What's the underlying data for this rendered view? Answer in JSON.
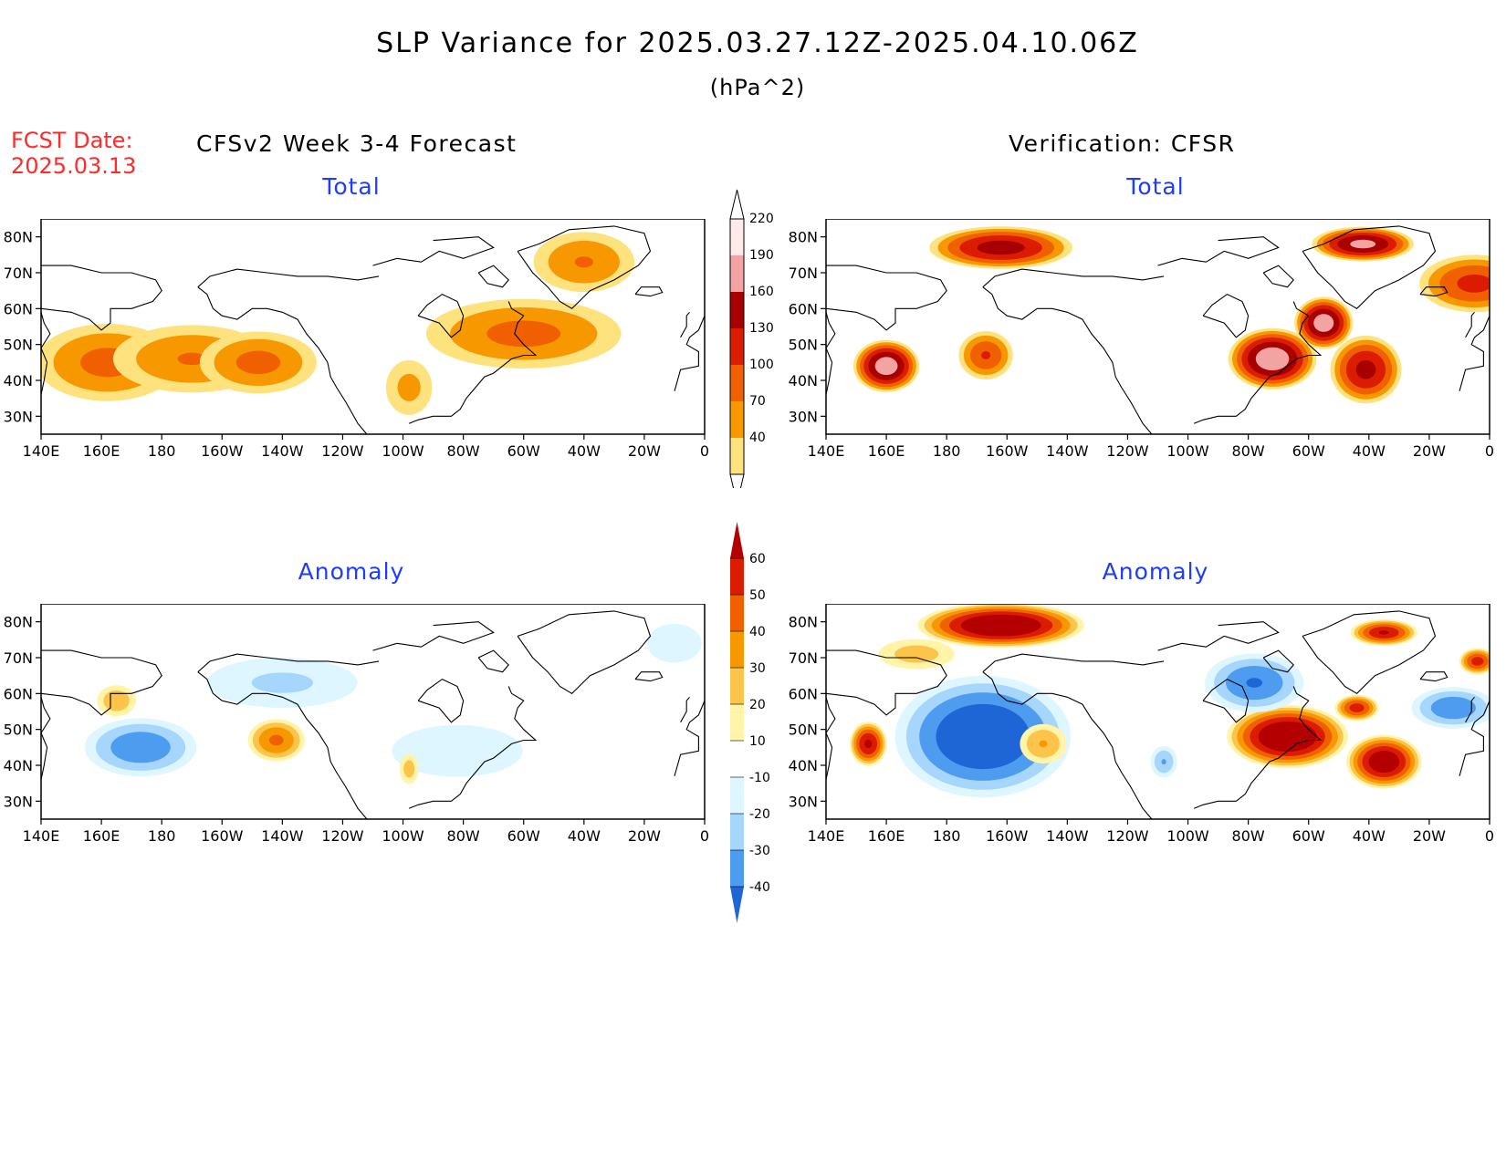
{
  "header": {
    "title": "SLP Variance for 2025.03.27.12Z-2025.04.10.06Z",
    "units": "(hPa^2)",
    "fcst_label": "FCST Date:",
    "fcst_date": "2025.03.13",
    "left_column": "CFSv2 Week 3-4 Forecast",
    "right_column": "Verification: CFSR"
  },
  "axes": {
    "lon_labels": [
      "140E",
      "160E",
      "180",
      "160W",
      "140W",
      "120W",
      "100W",
      "80W",
      "60W",
      "40W",
      "20W",
      "0"
    ],
    "lat_labels": [
      "80N",
      "70N",
      "60N",
      "50N",
      "40N",
      "30N"
    ]
  },
  "panels": [
    {
      "id": "forecast-total",
      "title": "Total",
      "field": "total",
      "source": "CFSv2 Week 3-4 Forecast"
    },
    {
      "id": "verification-total",
      "title": "Total",
      "field": "total",
      "source": "Verification: CFSR"
    },
    {
      "id": "forecast-anomaly",
      "title": "Anomaly",
      "field": "anomaly",
      "source": "CFSv2 Week 3-4 Forecast"
    },
    {
      "id": "verification-anomaly",
      "title": "Anomaly",
      "field": "anomaly",
      "source": "Verification: CFSR"
    }
  ],
  "colorbars": {
    "total": {
      "labels": [
        "220",
        "190",
        "160",
        "130",
        "100",
        "70",
        "40"
      ],
      "colors": [
        "#ffe9e9",
        "#f4a3a3",
        "#a80000",
        "#dc1c00",
        "#f06000",
        "#f89800",
        "#fde27e"
      ]
    },
    "anomaly": {
      "labels": [
        "60",
        "50",
        "40",
        "30",
        "20",
        "10",
        "-10",
        "-20",
        "-30",
        "-40"
      ],
      "colors": [
        "#b40000",
        "#dc1c00",
        "#f06000",
        "#f89800",
        "#fcc44a",
        "#fff4a8",
        "#ffffff",
        "#ddf6ff",
        "#a6d6fb",
        "#4e9cf0",
        "#1e66d6"
      ]
    }
  },
  "chart_data": [
    {
      "type": "heatmap",
      "name": "forecast-total",
      "lon_range": [
        140,
        360
      ],
      "lat_range": [
        25,
        85
      ],
      "levels": [
        40,
        70,
        100,
        130,
        160,
        190,
        220
      ],
      "features": [
        {
          "lon": 162,
          "lat": 45,
          "peak": 110,
          "spread_lon": 22,
          "spread_lat": 10
        },
        {
          "lon": 190,
          "lat": 46,
          "peak": 100,
          "spread_lon": 25,
          "spread_lat": 9
        },
        {
          "lon": 212,
          "lat": 45,
          "peak": 110,
          "spread_lon": 18,
          "spread_lat": 8
        },
        {
          "lon": 300,
          "lat": 53,
          "peak": 110,
          "spread_lon": 30,
          "spread_lat": 9
        },
        {
          "lon": 320,
          "lat": 73,
          "peak": 100,
          "spread_lon": 16,
          "spread_lat": 8
        },
        {
          "lon": 262,
          "lat": 38,
          "peak": 80,
          "spread_lon": 8,
          "spread_lat": 8
        }
      ]
    },
    {
      "type": "heatmap",
      "name": "verification-total",
      "lon_range": [
        140,
        360
      ],
      "lat_range": [
        25,
        85
      ],
      "levels": [
        40,
        70,
        100,
        130,
        160,
        190,
        220
      ],
      "features": [
        {
          "lon": 160,
          "lat": 44,
          "peak": 210,
          "spread_lon": 9,
          "spread_lat": 6
        },
        {
          "lon": 198,
          "lat": 77,
          "peak": 175,
          "spread_lon": 20,
          "spread_lat": 5
        },
        {
          "lon": 193,
          "lat": 47,
          "peak": 130,
          "spread_lon": 8,
          "spread_lat": 6
        },
        {
          "lon": 288,
          "lat": 46,
          "peak": 215,
          "spread_lon": 12,
          "spread_lat": 7
        },
        {
          "lon": 305,
          "lat": 56,
          "peak": 210,
          "spread_lon": 8,
          "spread_lat": 6
        },
        {
          "lon": 319,
          "lat": 43,
          "peak": 170,
          "spread_lon": 10,
          "spread_lat": 8
        },
        {
          "lon": 318,
          "lat": 78,
          "peak": 200,
          "spread_lon": 14,
          "spread_lat": 4
        },
        {
          "lon": 355,
          "lat": 67,
          "peak": 140,
          "spread_lon": 16,
          "spread_lat": 7
        }
      ]
    },
    {
      "type": "heatmap",
      "name": "forecast-anomaly",
      "lon_range": [
        140,
        360
      ],
      "lat_range": [
        25,
        85
      ],
      "levels": [
        -40,
        -30,
        -20,
        -10,
        10,
        20,
        30,
        40,
        50,
        60
      ],
      "features": [
        {
          "lon": 173,
          "lat": 45,
          "peak": -38,
          "spread_lon": 16,
          "spread_lat": 7
        },
        {
          "lon": 220,
          "lat": 63,
          "peak": -22,
          "spread_lon": 25,
          "spread_lat": 7
        },
        {
          "lon": 218,
          "lat": 47,
          "peak": 42,
          "spread_lon": 8,
          "spread_lat": 5
        },
        {
          "lon": 165,
          "lat": 58,
          "peak": 28,
          "spread_lon": 6,
          "spread_lat": 4
        },
        {
          "lon": 278,
          "lat": 44,
          "peak": -14,
          "spread_lon": 30,
          "spread_lat": 10
        },
        {
          "lon": 262,
          "lat": 39,
          "peak": 25,
          "spread_lon": 3,
          "spread_lat": 4
        },
        {
          "lon": 350,
          "lat": 74,
          "peak": -18,
          "spread_lon": 10,
          "spread_lat": 6
        }
      ]
    },
    {
      "type": "heatmap",
      "name": "verification-anomaly",
      "lon_range": [
        140,
        360
      ],
      "lat_range": [
        25,
        85
      ],
      "levels": [
        -40,
        -30,
        -20,
        -10,
        10,
        20,
        30,
        40,
        50,
        60
      ],
      "features": [
        {
          "lon": 198,
          "lat": 79,
          "peak": 75,
          "spread_lon": 22,
          "spread_lat": 5
        },
        {
          "lon": 192,
          "lat": 48,
          "peak": -52,
          "spread_lon": 24,
          "spread_lat": 14
        },
        {
          "lon": 154,
          "lat": 46,
          "peak": 62,
          "spread_lon": 5,
          "spread_lat": 5
        },
        {
          "lon": 212,
          "lat": 46,
          "peak": 30,
          "spread_lon": 7,
          "spread_lat": 5
        },
        {
          "lon": 293,
          "lat": 48,
          "peak": 75,
          "spread_lon": 16,
          "spread_lat": 7
        },
        {
          "lon": 325,
          "lat": 41,
          "peak": 70,
          "spread_lon": 10,
          "spread_lat": 6
        },
        {
          "lon": 316,
          "lat": 56,
          "peak": 55,
          "spread_lon": 6,
          "spread_lat": 3
        },
        {
          "lon": 325,
          "lat": 77,
          "peak": 60,
          "spread_lon": 9,
          "spread_lat": 3
        },
        {
          "lon": 282,
          "lat": 63,
          "peak": -40,
          "spread_lon": 14,
          "spread_lat": 7
        },
        {
          "lon": 348,
          "lat": 56,
          "peak": -38,
          "spread_lon": 12,
          "spread_lat": 5
        },
        {
          "lon": 356,
          "lat": 69,
          "peak": 55,
          "spread_lon": 5,
          "spread_lat": 3
        },
        {
          "lon": 252,
          "lat": 41,
          "peak": -30,
          "spread_lon": 4,
          "spread_lat": 4
        },
        {
          "lon": 170,
          "lat": 71,
          "peak": 25,
          "spread_lon": 12,
          "spread_lat": 4
        }
      ]
    }
  ]
}
